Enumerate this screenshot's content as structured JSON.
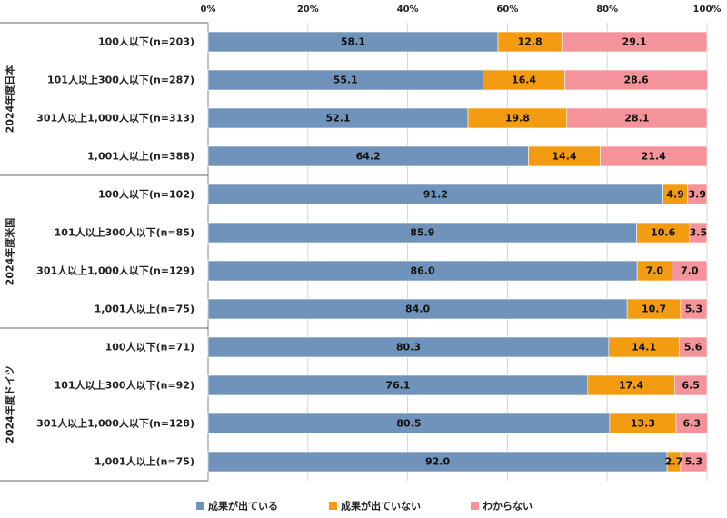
{
  "chart_data": {
    "type": "bar",
    "orientation": "horizontal",
    "stacked": "percent",
    "x_ticks": [
      "0%",
      "20%",
      "40%",
      "60%",
      "80%",
      "100%"
    ],
    "xlim": [
      0,
      100
    ],
    "grid": true,
    "legend_position": "bottom",
    "groups": [
      {
        "label": "2024年度日本",
        "categories": [
          "100人以下(n=203)",
          "101人以上300人以下(n=287)",
          "301人以上1,000人以下(n=313)",
          "1,001人以上(n=388)"
        ]
      },
      {
        "label": "2024年度米国",
        "categories": [
          "100人以下(n=102)",
          "101人以上300人以下(n=85)",
          "301人以上1,000人以下(n=129)",
          "1,001人以上(n=75)"
        ]
      },
      {
        "label": "2024年度ドイツ",
        "categories": [
          "100人以下(n=71)",
          "101人以上300人以下(n=92)",
          "301人以上1,000人以下(n=128)",
          "1,001人以上(n=75)"
        ]
      }
    ],
    "series": [
      {
        "name": "成果が出ている",
        "color": "#6f93bb",
        "values": [
          58.1,
          55.1,
          52.1,
          64.2,
          91.2,
          85.9,
          86.0,
          84.0,
          80.3,
          76.1,
          80.5,
          92.0
        ],
        "labels": [
          "58.1",
          "55.1",
          "52.1",
          "64.2",
          "91.2",
          "85.9",
          "86.0",
          "84.0",
          "80.3",
          "76.1",
          "80.5",
          "92.0"
        ]
      },
      {
        "name": "成果が出ていない",
        "color": "#f39c12",
        "values": [
          12.8,
          16.4,
          19.8,
          14.4,
          4.9,
          10.6,
          7.0,
          10.7,
          14.1,
          17.4,
          13.3,
          2.7
        ],
        "labels": [
          "12.8",
          "16.4",
          "19.8",
          "14.4",
          "4.9",
          "10.6",
          "7.0",
          "10.7",
          "14.1",
          "17.4",
          "13.3",
          "2.7"
        ]
      },
      {
        "name": "わからない",
        "color": "#f4949a",
        "values": [
          29.1,
          28.6,
          28.1,
          21.4,
          3.9,
          3.5,
          7.0,
          5.3,
          5.6,
          6.5,
          6.3,
          5.3
        ],
        "labels": [
          "29.1",
          "28.6",
          "28.1",
          "21.4",
          "3.9",
          "3.5",
          "7.0",
          "5.3",
          "5.6",
          "6.5",
          "6.3",
          "5.3"
        ]
      }
    ]
  }
}
